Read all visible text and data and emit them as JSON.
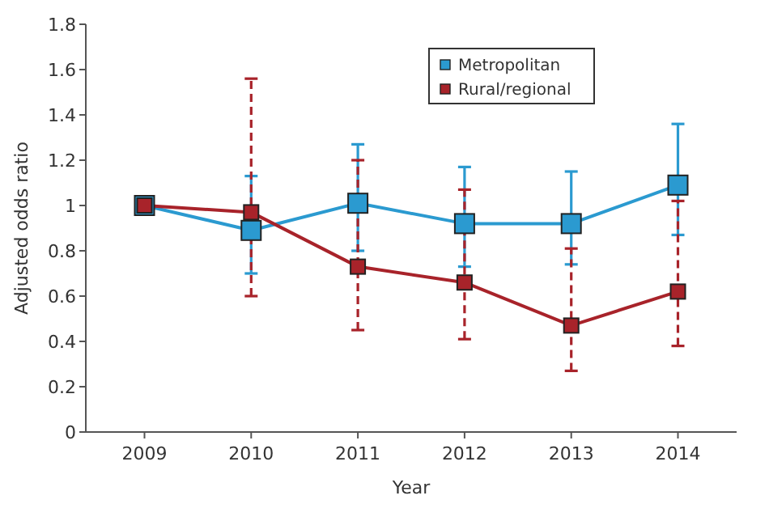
{
  "chart_data": {
    "type": "line",
    "xlabel": "Year",
    "ylabel": "Adjusted odds ratio",
    "categories": [
      "2009",
      "2010",
      "2011",
      "2012",
      "2013",
      "2014"
    ],
    "series": [
      {
        "name": "Metropolitan",
        "color": "#2b9ad0",
        "values": [
          1.0,
          0.89,
          1.01,
          0.92,
          0.92,
          1.09
        ],
        "errors": [
          null,
          [
            0.7,
            1.13
          ],
          [
            0.8,
            1.27
          ],
          [
            0.73,
            1.17
          ],
          [
            0.74,
            1.15
          ],
          [
            0.87,
            1.36
          ]
        ]
      },
      {
        "name": "Rural/regional",
        "color": "#a8232a",
        "values": [
          1.0,
          0.97,
          0.73,
          0.66,
          0.47,
          0.62
        ],
        "errors": [
          null,
          [
            0.6,
            1.56
          ],
          [
            0.45,
            1.2
          ],
          [
            0.41,
            1.07
          ],
          [
            0.27,
            0.81
          ],
          [
            0.38,
            1.02
          ]
        ]
      }
    ],
    "ylim": [
      0,
      1.8
    ],
    "yticks": [
      0,
      0.2,
      0.4,
      0.6,
      0.8,
      1,
      1.2,
      1.4,
      1.6,
      1.8
    ],
    "grid": false,
    "legend": "top right",
    "marker": "square",
    "line_style": "solid"
  }
}
